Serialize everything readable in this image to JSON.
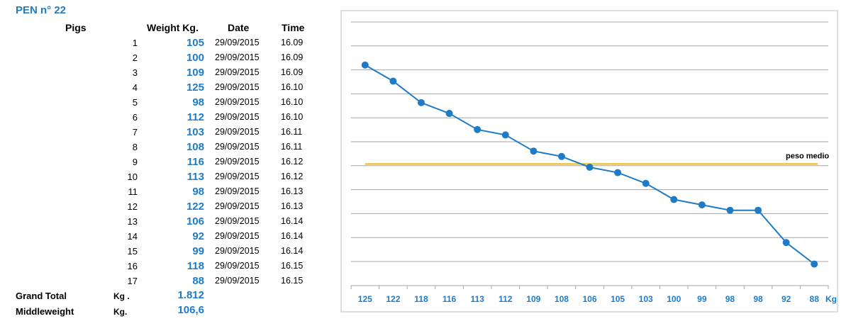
{
  "pen": {
    "title": "PEN n° 22"
  },
  "table": {
    "headers": {
      "pigs": "Pigs",
      "weight": "Weight Kg.",
      "date": "Date",
      "time": "Time"
    },
    "rows": [
      {
        "num": "1",
        "weight": "105",
        "date": "29/09/2015",
        "time": "16.09"
      },
      {
        "num": "2",
        "weight": "100",
        "date": "29/09/2015",
        "time": "16.09"
      },
      {
        "num": "3",
        "weight": "109",
        "date": "29/09/2015",
        "time": "16.09"
      },
      {
        "num": "4",
        "weight": "125",
        "date": "29/09/2015",
        "time": "16.10"
      },
      {
        "num": "5",
        "weight": "98",
        "date": "29/09/2015",
        "time": "16.10"
      },
      {
        "num": "6",
        "weight": "112",
        "date": "29/09/2015",
        "time": "16.10"
      },
      {
        "num": "7",
        "weight": "103",
        "date": "29/09/2015",
        "time": "16.11"
      },
      {
        "num": "8",
        "weight": "108",
        "date": "29/09/2015",
        "time": "16.11"
      },
      {
        "num": "9",
        "weight": "116",
        "date": "29/09/2015",
        "time": "16.12"
      },
      {
        "num": "10",
        "weight": "113",
        "date": "29/09/2015",
        "time": "16.12"
      },
      {
        "num": "11",
        "weight": "98",
        "date": "29/09/2015",
        "time": "16.13"
      },
      {
        "num": "12",
        "weight": "122",
        "date": "29/09/2015",
        "time": "16.13"
      },
      {
        "num": "13",
        "weight": "106",
        "date": "29/09/2015",
        "time": "16.14"
      },
      {
        "num": "14",
        "weight": "92",
        "date": "29/09/2015",
        "time": "16.14"
      },
      {
        "num": "15",
        "weight": "99",
        "date": "29/09/2015",
        "time": "16.14"
      },
      {
        "num": "16",
        "weight": "118",
        "date": "29/09/2015",
        "time": "16.15"
      },
      {
        "num": "17",
        "weight": "88",
        "date": "29/09/2015",
        "time": "16.15"
      }
    ]
  },
  "summary": {
    "grand_total": {
      "label": "Grand Total",
      "unit": "Kg .",
      "value": "1.812"
    },
    "middleweight": {
      "label": "Middleweight",
      "unit": "Kg.",
      "value": "106,6"
    }
  },
  "chart_data": {
    "type": "line",
    "categories": [
      "125",
      "122",
      "118",
      "116",
      "113",
      "112",
      "109",
      "108",
      "106",
      "105",
      "103",
      "100",
      "99",
      "98",
      "98",
      "92",
      "88"
    ],
    "x_unit_label": "Kg",
    "values": [
      125,
      122,
      118,
      116,
      113,
      112,
      109,
      108,
      106,
      105,
      103,
      100,
      99,
      98,
      98,
      92,
      88
    ],
    "reference_line": {
      "label": "peso medio",
      "value": 106.6
    },
    "ylim": [
      84,
      133
    ],
    "grid": true,
    "colors": {
      "series": "#1f7bc6",
      "reference": "#f5b800",
      "grid": "#a6a6a6",
      "border": "#bfbfbf",
      "tick": "#1f7bc6"
    }
  }
}
